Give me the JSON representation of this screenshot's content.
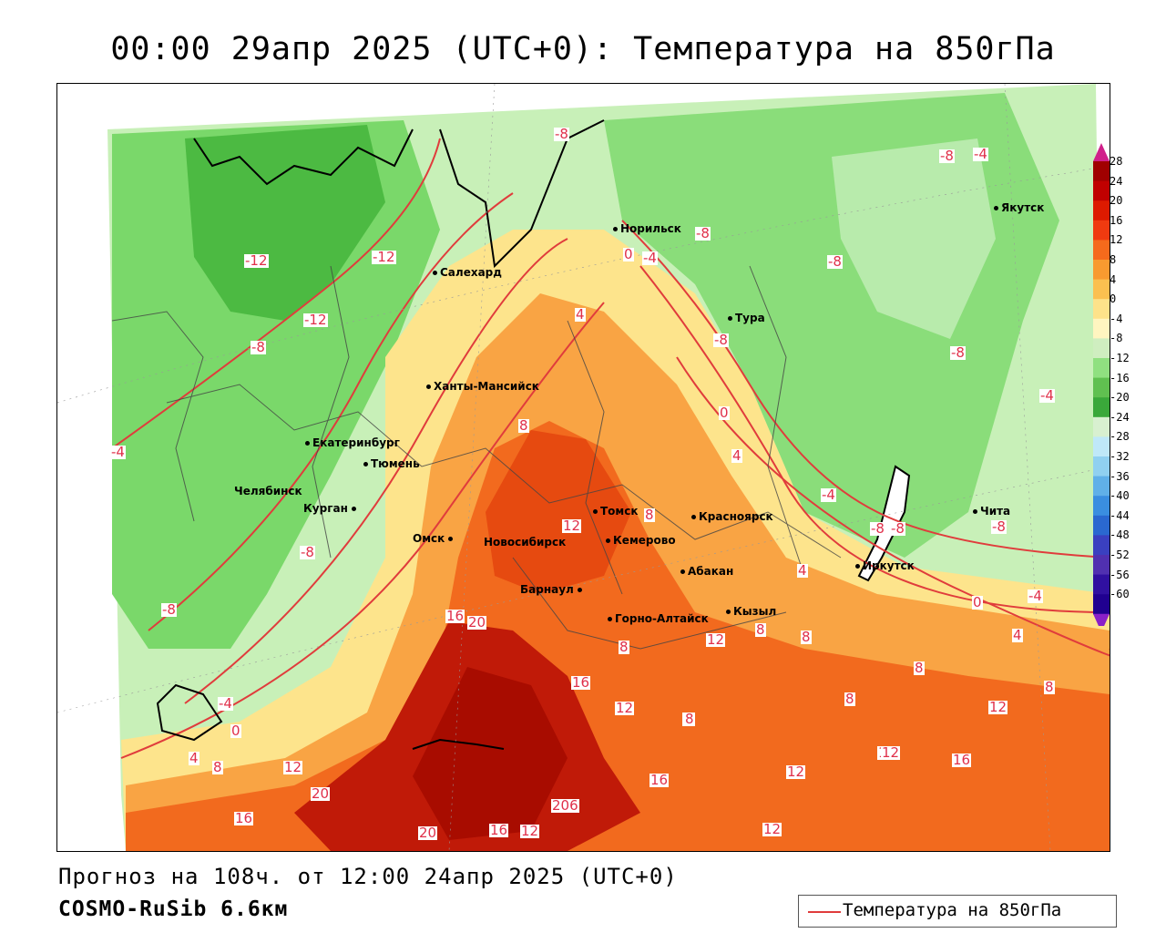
{
  "title": "00:00 29апр 2025 (UTC+0): Температура на 850гПа",
  "footer": {
    "forecast": "Прогноз на 108ч. от 12:00 24апр 2025 (UTC+0)",
    "model": "COSMO-RuSib 6.6км"
  },
  "legend": {
    "label": "Температура на 850гПа",
    "line_color": "#e03c3c"
  },
  "colorscale": {
    "ticks": [
      "28",
      "24",
      "20",
      "16",
      "12",
      "8",
      "4",
      "0",
      "-4",
      "-8",
      "-12",
      "-16",
      "-20",
      "-24",
      "-28",
      "-32",
      "-36",
      "-40",
      "-44",
      "-48",
      "-52",
      "-56",
      "-60"
    ],
    "colors": [
      "#a00000",
      "#c00000",
      "#dd1a00",
      "#f03a10",
      "#f56a1c",
      "#f89a30",
      "#fbc050",
      "#fde28a",
      "#fff5c0",
      "#cfeec0",
      "#90e080",
      "#60c050",
      "#3aa83a",
      "#d8f0d0",
      "#bfe8f8",
      "#90d0f0",
      "#60b0e8",
      "#3a8ee0",
      "#2a68d0",
      "#3a40c0",
      "#5030b0",
      "#3010a0",
      "#200090"
    ]
  },
  "cities": [
    {
      "name": "Норильск"
    },
    {
      "name": "Якутск"
    },
    {
      "name": "Салехард"
    },
    {
      "name": "Тура"
    },
    {
      "name": "Ханты-Мансийск"
    },
    {
      "name": "Екатеринбург"
    },
    {
      "name": "Тюмень"
    },
    {
      "name": "Челябинск"
    },
    {
      "name": "Курган"
    },
    {
      "name": "Томск"
    },
    {
      "name": "Красноярск"
    },
    {
      "name": "Омск"
    },
    {
      "name": "Новосибирск"
    },
    {
      "name": "Кемерово"
    },
    {
      "name": "Абакан"
    },
    {
      "name": "Барнаул"
    },
    {
      "name": "Горно-Алтайск"
    },
    {
      "name": "Кызыл"
    },
    {
      "name": "Иркутск"
    },
    {
      "name": "Чита"
    }
  ],
  "isotherm_labels": [
    "-8",
    "-8",
    "-4",
    "-12",
    "-12",
    "-12",
    "-8",
    "-4",
    "-8",
    "-8",
    "-8",
    "0",
    "-4",
    "4",
    "-8",
    "-8",
    "0",
    "4",
    "-4",
    "-4",
    "8",
    "8",
    "12",
    "-8",
    "-8",
    "4",
    "0",
    "-4",
    "16",
    "20",
    "4",
    "8",
    "12",
    "16",
    "8",
    "8",
    "8",
    "8",
    "16",
    "12",
    "8",
    "8",
    "-4",
    "0",
    "4",
    "8",
    "12",
    "12",
    "12",
    "20",
    "16",
    "20",
    "16",
    "12",
    "206",
    "12",
    "8",
    "12",
    "16",
    "16",
    "12",
    "-8",
    "-8"
  ]
}
